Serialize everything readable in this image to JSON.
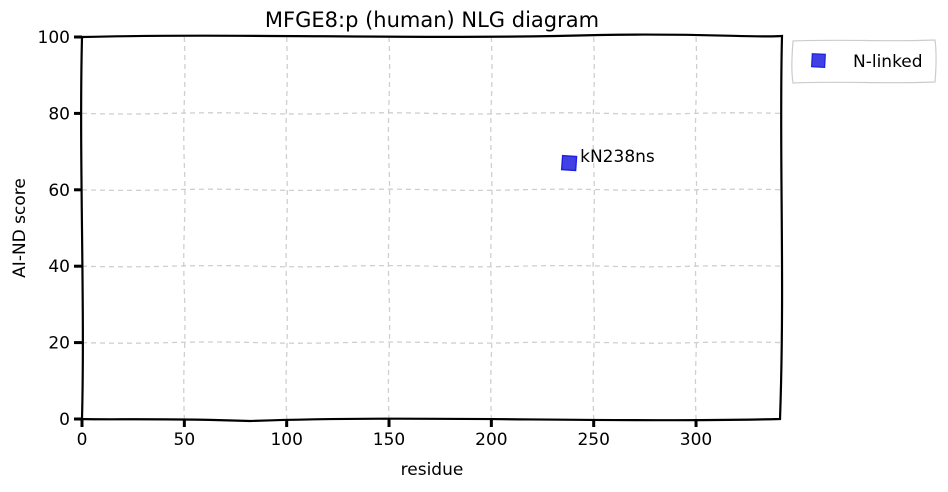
{
  "chart_data": {
    "type": "scatter",
    "title": "MFGE8:p (human) NLG diagram",
    "xlabel": "residue",
    "ylabel": "AI-ND score",
    "xlim": [
      0,
      342
    ],
    "ylim": [
      0,
      100
    ],
    "xticks": [
      0,
      50,
      100,
      150,
      200,
      250,
      300
    ],
    "yticks": [
      0,
      20,
      40,
      60,
      80,
      100
    ],
    "grid": true,
    "legend_position": "outside-top-right",
    "series": [
      {
        "name": "N-linked",
        "marker": "square",
        "color": "#1f1fe0",
        "points": [
          {
            "x": 238,
            "y": 67,
            "label": "kN238ns"
          }
        ]
      }
    ]
  }
}
